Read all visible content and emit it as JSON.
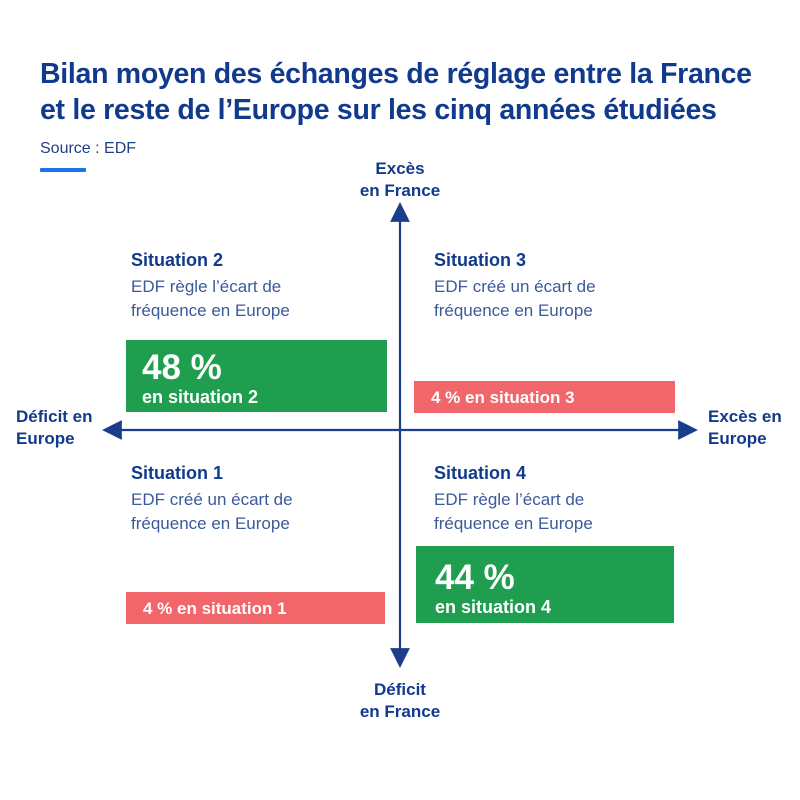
{
  "title": {
    "line1": "Bilan moyen des échanges de réglage entre la France",
    "line2": "et le reste de l’Europe sur les cinq années étudiées"
  },
  "source": "Source : EDF",
  "axes": {
    "top": [
      "Excès",
      "en France"
    ],
    "bottom": [
      "Déficit",
      "en France"
    ],
    "left": [
      "Déficit en",
      "Europe"
    ],
    "right": [
      "Excès en",
      "Europe"
    ]
  },
  "situations": {
    "s2": {
      "heading": "Situation 2",
      "desc": [
        "EDF règle l’écart de",
        "fréquence en Europe"
      ],
      "box_value": "48 %",
      "box_label": "en situation 2",
      "share": 48
    },
    "s3": {
      "heading": "Situation 3",
      "desc": [
        "EDF créé un écart de",
        "fréquence en Europe"
      ],
      "box_label": "4 % en situation 3",
      "share": 4
    },
    "s1": {
      "heading": "Situation 1",
      "desc": [
        "EDF créé un écart de",
        "fréquence en Europe"
      ],
      "box_label": "4 % en situation 1",
      "share": 4
    },
    "s4": {
      "heading": "Situation 4",
      "desc": [
        "EDF règle l’écart de",
        "fréquence en Europe"
      ],
      "box_value": "44 %",
      "box_label": "en situation 4",
      "share": 44
    }
  },
  "colors": {
    "title": "#123a8c",
    "axis": "#1c3c8c",
    "regulates": "#1f9e4f",
    "creates": "#f1666a",
    "accent": "#1a73e8"
  }
}
